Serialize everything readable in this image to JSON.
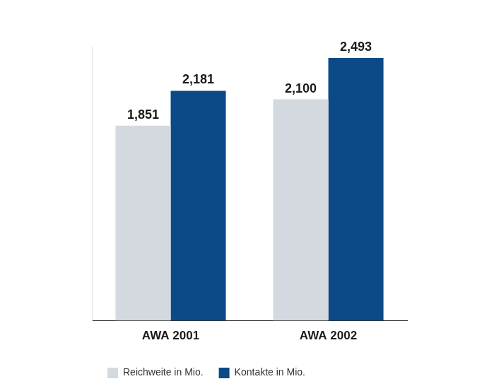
{
  "chart_data": {
    "type": "bar",
    "categories": [
      "AWA 2001",
      "AWA 2002"
    ],
    "series": [
      {
        "name": "Reichweite in Mio.",
        "color": "#d3d9de",
        "values": [
          1.851,
          2.1
        ],
        "value_labels": [
          "1,851",
          "2,100"
        ]
      },
      {
        "name": "Kontakte in Mio.",
        "color": "#0b4a87",
        "values": [
          2.181,
          2.493
        ],
        "value_labels": [
          "2,181",
          "2,493"
        ]
      }
    ],
    "ylim": [
      0,
      2.6
    ],
    "grid": false,
    "legend": "bottom",
    "data_labels": true,
    "tick_labels": "x"
  }
}
